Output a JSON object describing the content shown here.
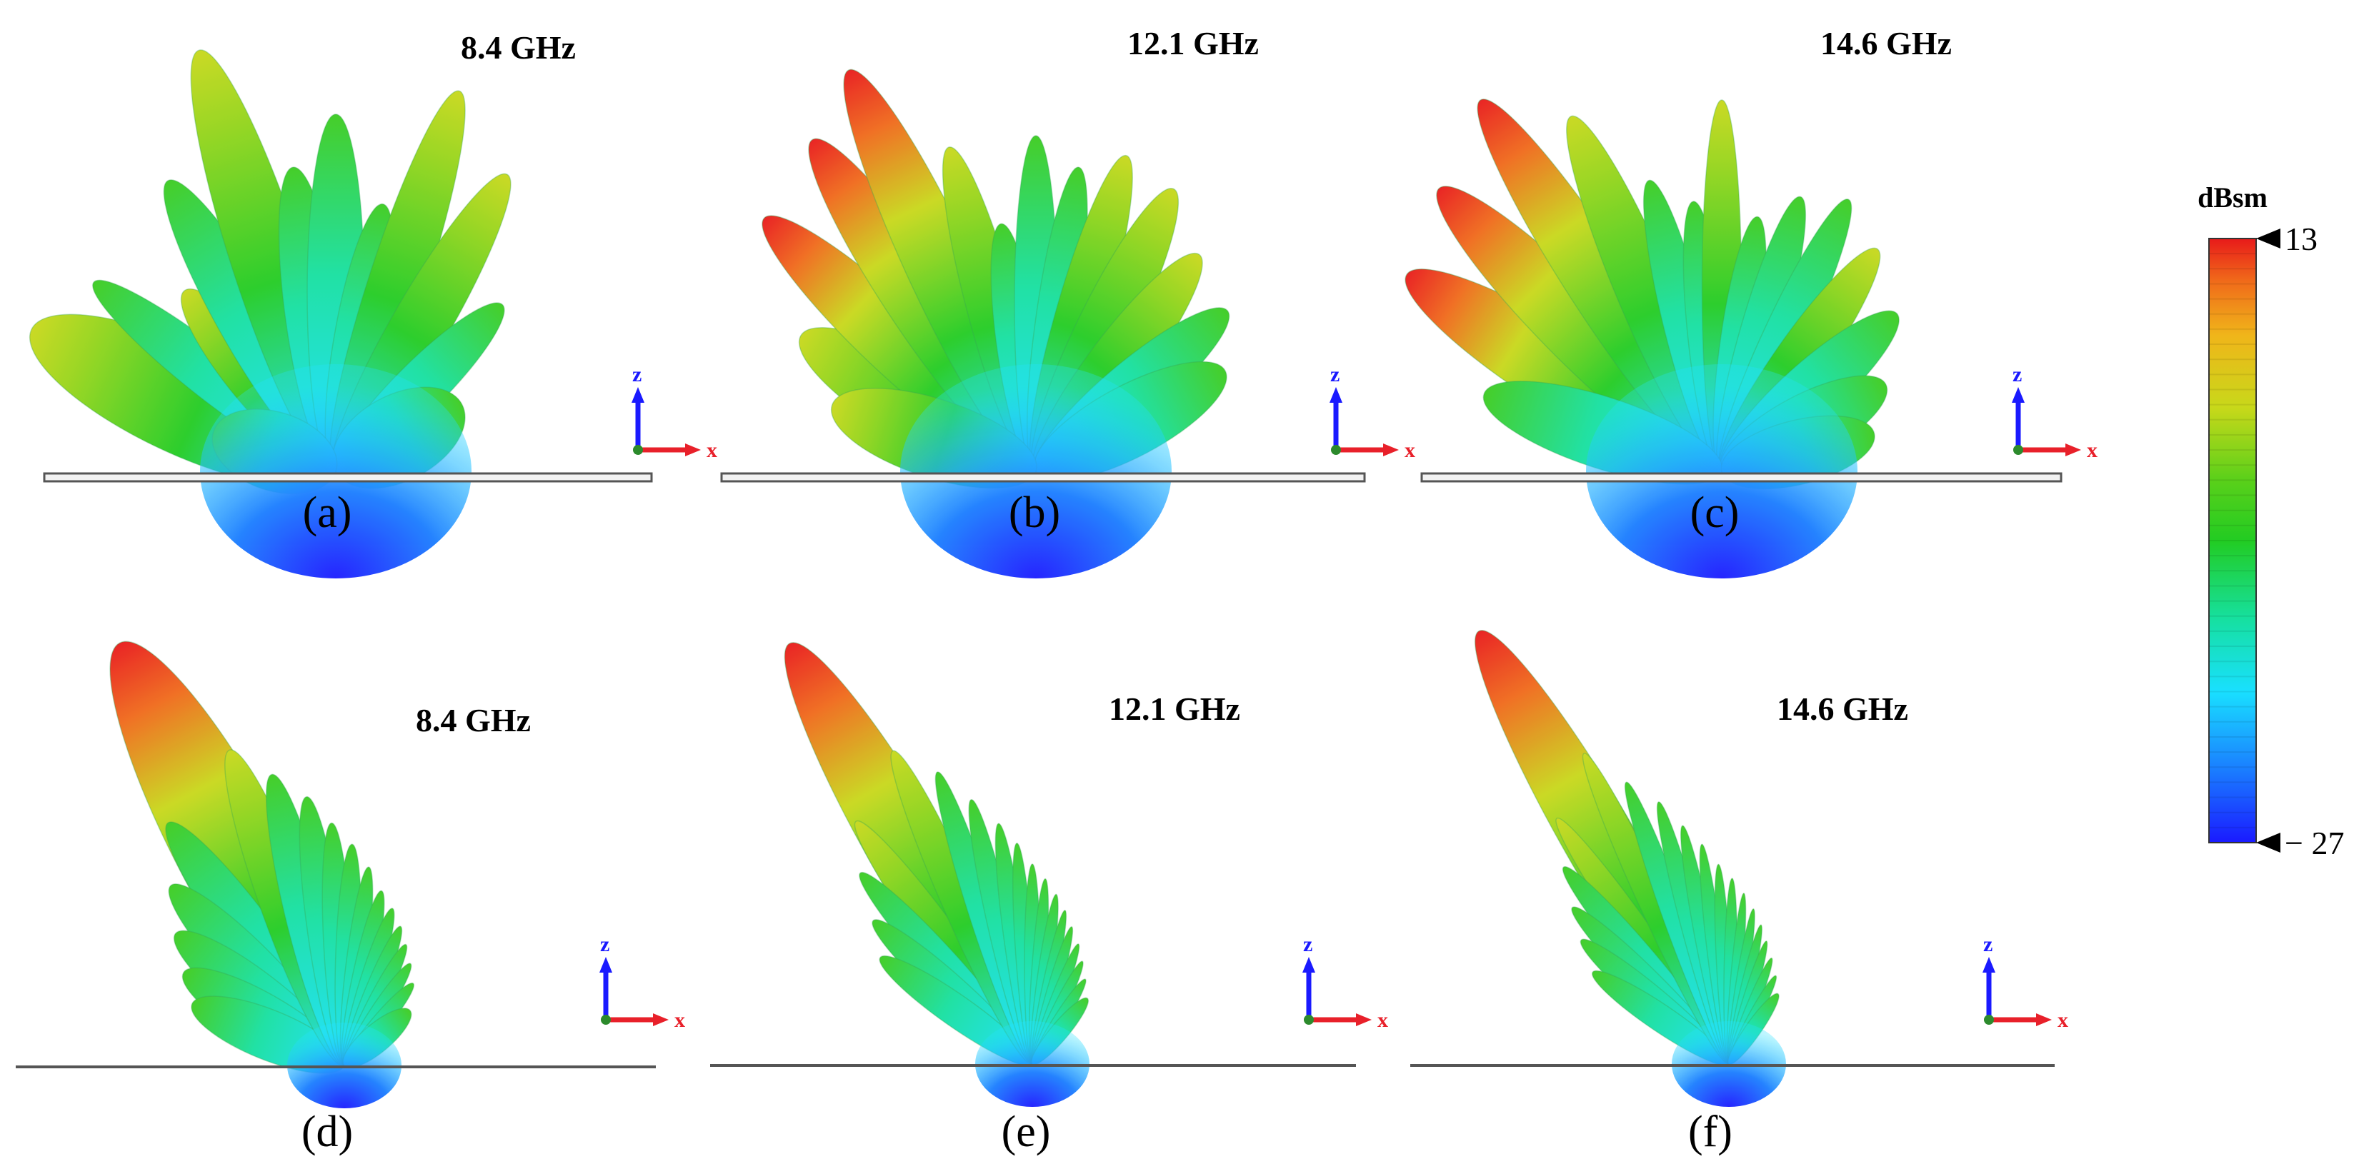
{
  "colors": {
    "scale": [
      "#1a1aff",
      "#1a7dff",
      "#19e0ff",
      "#16e0a0",
      "#22cc22",
      "#5ad01a",
      "#c8d81a",
      "#f0b51a",
      "#f06a1a",
      "#e81a1a"
    ],
    "ground": "#555555",
    "axis_z": "#1a1aff",
    "axis_x": "#e8202a"
  },
  "colorbar": {
    "unit": "dBsm",
    "max_label": "13",
    "min_label": "− 27"
  },
  "panels": [
    {
      "id": "a",
      "label": "(a)",
      "frequency": "8.4 GHz",
      "ground": "slab",
      "axis_z": "z",
      "axis_x": "x"
    },
    {
      "id": "b",
      "label": "(b)",
      "frequency": "12.1 GHz",
      "ground": "slab",
      "axis_z": "z",
      "axis_x": "x"
    },
    {
      "id": "c",
      "label": "(c)",
      "frequency": "14.6 GHz",
      "ground": "slab",
      "axis_z": "z",
      "axis_x": "x"
    },
    {
      "id": "d",
      "label": "(d)",
      "frequency": "8.4 GHz",
      "ground": "line",
      "axis_z": "z",
      "axis_x": "x"
    },
    {
      "id": "e",
      "label": "(e)",
      "frequency": "12.1 GHz",
      "ground": "line",
      "axis_z": "z",
      "axis_x": "x"
    },
    {
      "id": "f",
      "label": "(f)",
      "frequency": "14.6 GHz",
      "ground": "line",
      "axis_z": "z",
      "axis_x": "x"
    }
  ]
}
